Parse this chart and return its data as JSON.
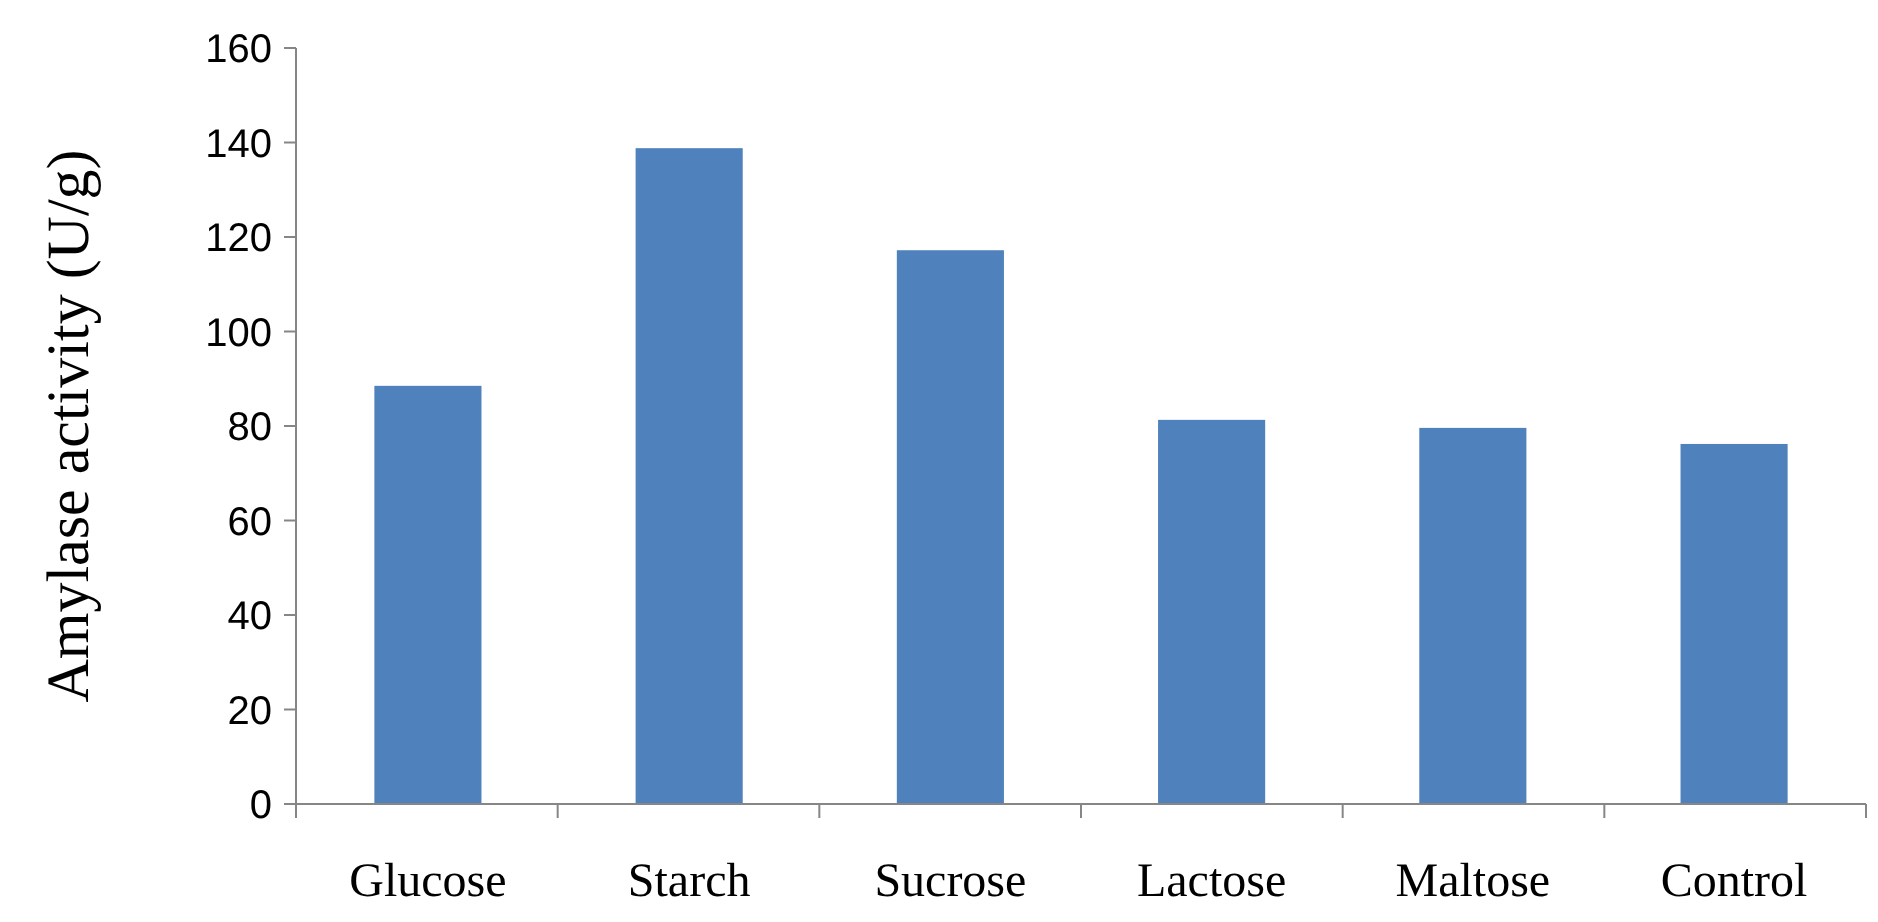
{
  "chart_data": {
    "type": "bar",
    "ylabel": "Amylase activity (U/g)",
    "categories": [
      "Glucose",
      "Starch",
      "Sucrose",
      "Lactose",
      "Maltose",
      "Control"
    ],
    "values": [
      88.5,
      138.8,
      117.2,
      81.3,
      79.6,
      76.2
    ],
    "color": "#4f81bd",
    "ylim": [
      0,
      160
    ],
    "yticks": [
      0,
      20,
      40,
      60,
      80,
      100,
      120,
      140,
      160
    ],
    "grid": false
  }
}
